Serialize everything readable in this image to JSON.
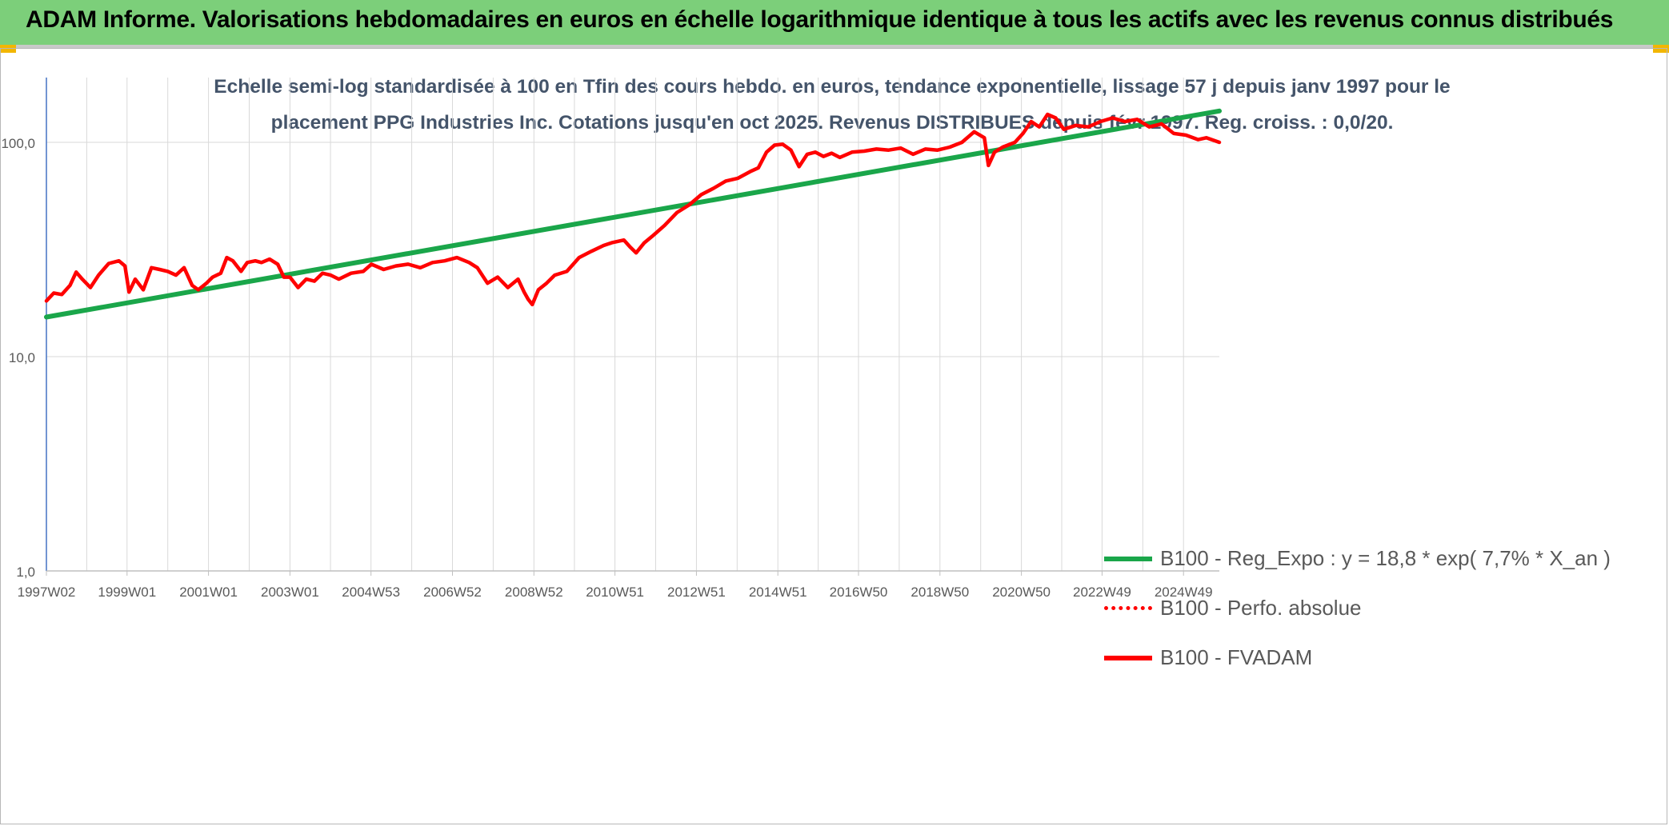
{
  "header": {
    "title": "ADAM Informe. Valorisations hebdomadaires en euros en échelle logarithmique identique à tous les actifs avec les revenus connus distribués"
  },
  "colors": {
    "banner": "#7ccf7a",
    "trend": "#1aa64a",
    "fvadam": "#ff0000",
    "perfo": "#ff0000",
    "grid": "#d9d9d9",
    "axis_text": "#595959",
    "title_text": "#44546a"
  },
  "chart_data": {
    "type": "line",
    "title_line1": "Echelle semi-log standardisée à 100 en Tfin des cours hebdo. en euros, tendance exponentielle, lissage 57 j depuis janv 1997 pour le",
    "title_line2": "placement PPG Industries Inc. Cotations jusqu'en oct 2025. Revenus DISTRIBUES depuis févr 1997. Reg. croiss. : 0,0/20.",
    "y_scale": "log",
    "ylim": [
      1,
      190
    ],
    "xlim": [
      1997.02,
      2025.82
    ],
    "grid": true,
    "y_ticks": [
      {
        "value": 1,
        "label": "1,0"
      },
      {
        "value": 10,
        "label": "10,0"
      },
      {
        "value": 100,
        "label": "100,0"
      }
    ],
    "x_ticks": [
      {
        "value": 1997.02,
        "label": "1997W02"
      },
      {
        "value": 1999.0,
        "label": "1999W01"
      },
      {
        "value": 2001.0,
        "label": "2001W01"
      },
      {
        "value": 2003.0,
        "label": "2003W01"
      },
      {
        "value": 2004.99,
        "label": "2004W53"
      },
      {
        "value": 2006.99,
        "label": "2006W52"
      },
      {
        "value": 2008.99,
        "label": "2008W52"
      },
      {
        "value": 2010.98,
        "label": "2010W51"
      },
      {
        "value": 2012.98,
        "label": "2012W51"
      },
      {
        "value": 2014.98,
        "label": "2014W51"
      },
      {
        "value": 2016.96,
        "label": "2016W50"
      },
      {
        "value": 2018.96,
        "label": "2018W50"
      },
      {
        "value": 2020.96,
        "label": "2020W50"
      },
      {
        "value": 2022.94,
        "label": "2022W49"
      },
      {
        "value": 2024.94,
        "label": "2024W49"
      }
    ],
    "legend_position": "bottom-right",
    "series": [
      {
        "name": "B100 - Reg_Expo : y = 18,8 * exp( 7,7% *  X_an )",
        "style": "solid",
        "color": "#1aa64a",
        "x": [
          1997.02,
          2025.82
        ],
        "y": [
          15.3,
          140
        ]
      },
      {
        "name": "B100 - Perfo. absolue",
        "style": "dotted",
        "color": "#ff0000",
        "x": [],
        "y": []
      },
      {
        "name": "B100 - FVADAM",
        "style": "solid",
        "color": "#ff0000",
        "x": [
          1997.02,
          1997.2,
          1997.4,
          1997.6,
          1997.75,
          1997.9,
          1998.1,
          1998.3,
          1998.55,
          1998.8,
          1998.95,
          1999.05,
          1999.2,
          1999.4,
          1999.6,
          1999.8,
          2000.0,
          2000.2,
          2000.4,
          2000.6,
          2000.75,
          2000.95,
          2001.1,
          2001.3,
          2001.45,
          2001.6,
          2001.8,
          2001.95,
          2002.15,
          2002.3,
          2002.5,
          2002.7,
          2002.85,
          2003.0,
          2003.2,
          2003.4,
          2003.6,
          2003.8,
          2004.0,
          2004.2,
          2004.5,
          2004.8,
          2005.0,
          2005.3,
          2005.6,
          2005.9,
          2006.2,
          2006.5,
          2006.8,
          2007.1,
          2007.4,
          2007.6,
          2007.85,
          2008.1,
          2008.35,
          2008.6,
          2008.75,
          2008.85,
          2008.95,
          2009.1,
          2009.3,
          2009.5,
          2009.8,
          2010.1,
          2010.4,
          2010.7,
          2010.9,
          2011.2,
          2011.35,
          2011.5,
          2011.7,
          2011.9,
          2012.2,
          2012.5,
          2012.8,
          2013.1,
          2013.4,
          2013.7,
          2014.0,
          2014.3,
          2014.5,
          2014.7,
          2014.9,
          2015.1,
          2015.3,
          2015.5,
          2015.7,
          2015.9,
          2016.1,
          2016.3,
          2016.5,
          2016.8,
          2017.1,
          2017.4,
          2017.7,
          2018.0,
          2018.3,
          2018.6,
          2018.9,
          2019.2,
          2019.5,
          2019.8,
          2020.05,
          2020.15,
          2020.3,
          2020.5,
          2020.8,
          2021.0,
          2021.2,
          2021.4,
          2021.6,
          2021.8,
          2022.0,
          2022.3,
          2022.6,
          2022.9,
          2023.2,
          2023.5,
          2023.8,
          2024.1,
          2024.4,
          2024.7,
          2025.0,
          2025.3,
          2025.5,
          2025.82
        ],
        "y": [
          18.2,
          19.8,
          19.5,
          21.5,
          24.8,
          23.0,
          21.0,
          24.0,
          27.2,
          28.0,
          26.5,
          20.0,
          23.0,
          20.5,
          26.0,
          25.5,
          25.0,
          24.0,
          26.0,
          21.5,
          20.5,
          22.0,
          23.5,
          24.5,
          29.0,
          28.0,
          25.0,
          27.5,
          28.0,
          27.5,
          28.5,
          27.0,
          23.5,
          23.5,
          21.0,
          23.0,
          22.5,
          24.5,
          24.0,
          23.0,
          24.5,
          25.0,
          27.0,
          25.5,
          26.5,
          27.0,
          26.0,
          27.5,
          28.0,
          29.0,
          27.5,
          26.0,
          22.0,
          23.5,
          21.0,
          23.0,
          20.0,
          18.5,
          17.5,
          20.5,
          22.0,
          24.0,
          25.0,
          29.0,
          31.0,
          33.0,
          34.0,
          35.0,
          32.5,
          30.5,
          34.0,
          36.5,
          41.0,
          47.0,
          51.0,
          57.0,
          61.0,
          66.0,
          68.0,
          73.0,
          76.0,
          90.0,
          97.0,
          98.0,
          92.0,
          77.0,
          88.0,
          90.0,
          86.0,
          89.0,
          85.0,
          90.0,
          91.0,
          93.0,
          92.0,
          94.0,
          88.0,
          93.0,
          92.0,
          95.0,
          100.0,
          112.0,
          105.0,
          78.0,
          90.0,
          95.0,
          100.0,
          110.0,
          125.0,
          118.0,
          135.0,
          130.0,
          115.0,
          120.0,
          118.0,
          125.0,
          130.0,
          125.0,
          128.0,
          118.0,
          122.0,
          110.0,
          108.0,
          103.0,
          105.0,
          100.0
        ]
      }
    ]
  }
}
